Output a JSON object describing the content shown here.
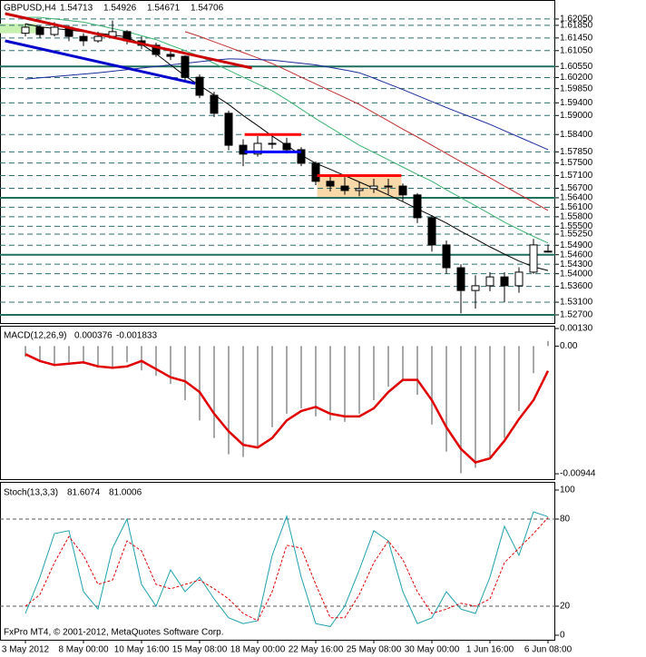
{
  "footer": "FxPro MT4, © 2001-2012, MetaQuotes Software Corp.",
  "chart_data": [
    {
      "type": "candlestick",
      "title": "GBPUSD,H4",
      "open": [
        1.616,
        1.6179,
        1.6156,
        1.6179,
        1.615,
        1.6136,
        1.615,
        1.6165,
        1.6136,
        1.6122,
        1.6093,
        1.6087,
        1.6021,
        1.5964,
        1.5907,
        1.5806,
        1.5778,
        1.5812,
        1.5812,
        1.5792,
        1.5749,
        1.5692,
        1.5677,
        1.5663,
        1.5669,
        1.5677,
        1.5677,
        1.5649,
        1.5577,
        1.5491,
        1.5419,
        1.5347,
        1.5362,
        1.539,
        1.5362,
        1.5405,
        1.54713
      ],
      "high": [
        1.619,
        1.6185,
        1.6195,
        1.6185,
        1.616,
        1.6165,
        1.62,
        1.617,
        1.615,
        1.613,
        1.611,
        1.609,
        1.603,
        1.5975,
        1.5915,
        1.5825,
        1.5835,
        1.584,
        1.583,
        1.58,
        1.5755,
        1.571,
        1.5705,
        1.569,
        1.57,
        1.57,
        1.5685,
        1.5655,
        1.5585,
        1.5505,
        1.543,
        1.5395,
        1.5405,
        1.5405,
        1.542,
        1.551,
        1.54926
      ],
      "low": [
        1.615,
        1.6145,
        1.615,
        1.6135,
        1.612,
        1.613,
        1.6145,
        1.6125,
        1.611,
        1.6085,
        1.6075,
        1.601,
        1.5955,
        1.5895,
        1.579,
        1.574,
        1.577,
        1.5795,
        1.578,
        1.574,
        1.568,
        1.566,
        1.565,
        1.5645,
        1.5655,
        1.565,
        1.563,
        1.556,
        1.547,
        1.54,
        1.5275,
        1.529,
        1.5345,
        1.531,
        1.534,
        1.54,
        1.54671
      ],
      "close": [
        1.6179,
        1.6156,
        1.6179,
        1.615,
        1.6136,
        1.615,
        1.6165,
        1.6136,
        1.6122,
        1.6093,
        1.6087,
        1.6021,
        1.5964,
        1.5907,
        1.5806,
        1.5778,
        1.5812,
        1.5812,
        1.5792,
        1.5749,
        1.5692,
        1.5677,
        1.5663,
        1.5669,
        1.5677,
        1.5677,
        1.5649,
        1.5577,
        1.5491,
        1.5419,
        1.5347,
        1.5362,
        1.539,
        1.5362,
        1.5405,
        1.5491,
        1.54706
      ],
      "series": [
        {
          "color": "#000000",
          "values": [
            1.619,
            1.618,
            1.6175,
            1.617,
            1.6165,
            1.616,
            1.6155,
            1.6148,
            1.6125,
            1.6095,
            1.606,
            1.6025,
            1.5995,
            1.5965,
            1.5935,
            1.59,
            1.5868,
            1.5835,
            1.5805,
            1.5775,
            1.5749,
            1.573,
            1.571,
            1.569,
            1.567,
            1.5649,
            1.5628,
            1.5605,
            1.5583,
            1.556,
            1.5534,
            1.551,
            1.5485,
            1.5462,
            1.544,
            1.5422,
            1.541
          ]
        },
        {
          "color": "#3cb371",
          "values": [
            1.621,
            1.621,
            1.6205,
            1.62,
            1.6195,
            1.6185,
            1.6175,
            1.6165,
            1.6152,
            1.614,
            1.6122,
            1.6105,
            1.6087,
            1.6065,
            1.6043,
            1.6021,
            1.6,
            1.5978,
            1.595,
            1.592,
            1.589,
            1.5862,
            1.5834,
            1.5806,
            1.5783,
            1.576,
            1.5737,
            1.5714,
            1.5692,
            1.5665,
            1.564,
            1.5615,
            1.5589,
            1.5563,
            1.554,
            1.5518,
            1.5497
          ]
        },
        {
          "color": "#c03030",
          "values": [
            null,
            null,
            null,
            null,
            null,
            null,
            null,
            null,
            null,
            null,
            null,
            1.6165,
            1.615,
            1.6133,
            1.6116,
            1.6099,
            1.6082,
            1.6064,
            1.6043,
            1.6021,
            1.6,
            1.5978,
            1.5957,
            1.5935,
            1.5909,
            1.5883,
            1.5857,
            1.5832,
            1.5806,
            1.578,
            1.5754,
            1.5729,
            1.5703,
            1.5677,
            1.5651,
            1.5626,
            1.56
          ]
        },
        {
          "color": "#1a2a9a",
          "values": [
            1.6015,
            1.6019,
            1.6023,
            1.6027,
            1.6031,
            1.6035,
            1.604,
            1.6045,
            1.605,
            1.6055,
            1.606,
            1.6065,
            1.607,
            1.6075,
            1.6079,
            1.6078,
            1.6077,
            1.6075,
            1.607,
            1.6065,
            1.606,
            1.6052,
            1.6044,
            1.6035,
            1.6018,
            1.6,
            1.5982,
            1.5963,
            1.5944,
            1.5925,
            1.5907,
            1.589,
            1.5872,
            1.5852,
            1.5832,
            1.5812,
            1.5792
          ]
        }
      ],
      "trendlines": [
        {
          "color": "#cc0000",
          "x": [
            -1.4,
            15.6
          ],
          "y": [
            1.6222,
            1.605
          ]
        },
        {
          "color": "#0000cc",
          "x": [
            -1.4,
            11.7
          ],
          "y": [
            1.6136,
            1.6001
          ]
        }
      ],
      "zones": [
        {
          "x": [
            -1.75,
            0.75
          ],
          "y": [
            1.616,
            1.619
          ],
          "fill": "#c8f0b0"
        },
        {
          "x": [
            15.1,
            19.0
          ],
          "y": [
            1.5785,
            1.584
          ],
          "top_color": "#ff0000",
          "bottom_color": "#0000ff"
        },
        {
          "x": [
            20.1,
            25.9
          ],
          "y": [
            1.564,
            1.571
          ],
          "fill": "#f8d8a8",
          "top_color": "#ff0000"
        }
      ],
      "ylim": [
        1.5247,
        1.6222
      ],
      "yticks": [
        {
          "value": 1.6205,
          "label": "1.62050"
        },
        {
          "value": 1.6185,
          "label": "1.61850"
        },
        {
          "value": 1.6145,
          "label": "1.61450"
        },
        {
          "value": 1.6105,
          "label": "1.61050"
        },
        {
          "value": 1.6055,
          "label": "1.60550"
        },
        {
          "value": 1.602,
          "label": "1.60200"
        },
        {
          "value": 1.5985,
          "label": "1.59850"
        },
        {
          "value": 1.594,
          "label": "1.59400"
        },
        {
          "value": 1.59,
          "label": "1.59000"
        },
        {
          "value": 1.584,
          "label": "1.58400"
        },
        {
          "value": 1.5785,
          "label": "1.57850"
        },
        {
          "value": 1.575,
          "label": "1.57500"
        },
        {
          "value": 1.571,
          "label": "1.57100"
        },
        {
          "value": 1.567,
          "label": "1.56700"
        },
        {
          "value": 1.564,
          "label": "1.56400"
        },
        {
          "value": 1.561,
          "label": "1.56100"
        },
        {
          "value": 1.558,
          "label": "1.55800"
        },
        {
          "value": 1.555,
          "label": "1.55500"
        },
        {
          "value": 1.5525,
          "label": "1.55250"
        },
        {
          "value": 1.549,
          "label": "1.54900"
        },
        {
          "value": 1.546,
          "label": "1.54600"
        },
        {
          "value": 1.543,
          "label": "1.54300"
        },
        {
          "value": 1.54,
          "label": "1.54000"
        },
        {
          "value": 1.536,
          "label": "1.53600"
        },
        {
          "value": 1.531,
          "label": "1.53100"
        },
        {
          "value": 1.527,
          "label": "1.52700"
        }
      ],
      "grid": true,
      "grid_color": "#2f6f6f",
      "levels": [
        1.6055,
        1.564,
        1.546,
        1.527
      ],
      "level_color": "#1f6f5f"
    },
    {
      "type": "combo",
      "title": "MACD(12,26,9)",
      "series": [
        {
          "type": "bar",
          "color": "#a8a8a8",
          "values": [
            -0.0008,
            -0.0012,
            -0.0014,
            -0.0012,
            -0.0013,
            -0.0015,
            -0.0016,
            -0.0012,
            -0.0018,
            -0.0022,
            -0.0028,
            -0.004,
            -0.0055,
            -0.0068,
            -0.008,
            -0.0082,
            -0.0074,
            -0.006,
            -0.005,
            -0.0046,
            -0.0052,
            -0.0055,
            -0.0056,
            -0.005,
            -0.004,
            -0.003,
            -0.0026,
            -0.0036,
            -0.0058,
            -0.0078,
            -0.0094,
            -0.009,
            -0.0082,
            -0.0068,
            -0.0048,
            -0.002,
            0.000376
          ]
        },
        {
          "type": "line",
          "color": "#e00000",
          "values": [
            -0.0006,
            -0.0011,
            -0.0014,
            -0.0013,
            -0.0012,
            -0.0015,
            -0.0016,
            -0.0015,
            -0.0011,
            -0.0017,
            -0.0023,
            -0.0026,
            -0.0034,
            -0.005,
            -0.0063,
            -0.0073,
            -0.0075,
            -0.0068,
            -0.0055,
            -0.0048,
            -0.0045,
            -0.005,
            -0.0052,
            -0.0052,
            -0.0046,
            -0.0034,
            -0.0025,
            -0.0025,
            -0.004,
            -0.006,
            -0.0076,
            -0.0086,
            -0.0083,
            -0.007,
            -0.0054,
            -0.004,
            -0.001833
          ]
        }
      ],
      "ylim": [
        -0.00977,
        0.0013
      ],
      "yticks": [
        {
          "value": 0.0013,
          "label": "0.00130"
        },
        {
          "value": 0,
          "label": "0.00"
        },
        {
          "value": -0.00944,
          "label": "-0.00944"
        }
      ]
    },
    {
      "type": "line",
      "title": "Stoch(13,3,3)",
      "categories": [
        "3 May 2012",
        null,
        null,
        null,
        "8 May 00:00",
        null,
        null,
        null,
        "10 May 16:00",
        null,
        null,
        null,
        "15 May 08:00",
        null,
        null,
        null,
        "18 May 00:00",
        null,
        null,
        null,
        "22 May 16:00",
        null,
        null,
        null,
        "25 May 08:00",
        null,
        null,
        null,
        "30 May 00:00",
        null,
        null,
        null,
        "1 Jun 16:00",
        null,
        null,
        null,
        "6 Jun 08:00"
      ],
      "series": [
        {
          "color": "#20a0b0",
          "values": [
            15,
            40,
            70,
            72,
            30,
            18,
            60,
            80,
            35,
            20,
            45,
            30,
            40,
            25,
            12,
            8,
            10,
            55,
            82,
            40,
            8,
            6,
            20,
            45,
            72,
            65,
            30,
            8,
            12,
            30,
            18,
            15,
            40,
            75,
            55,
            85,
            81.6074
          ]
        },
        {
          "color": "#e00000",
          "dashed": true,
          "values": [
            20,
            28,
            50,
            68,
            55,
            35,
            38,
            65,
            58,
            35,
            32,
            35,
            38,
            32,
            25,
            15,
            10,
            30,
            62,
            60,
            35,
            12,
            12,
            28,
            50,
            65,
            52,
            30,
            15,
            18,
            22,
            20,
            25,
            50,
            60,
            70,
            81.0006
          ]
        }
      ],
      "ylim": [
        0,
        100
      ],
      "yticks": [
        100,
        80,
        20,
        0
      ],
      "levels": [
        80,
        20
      ],
      "level_color": "#555555"
    }
  ]
}
